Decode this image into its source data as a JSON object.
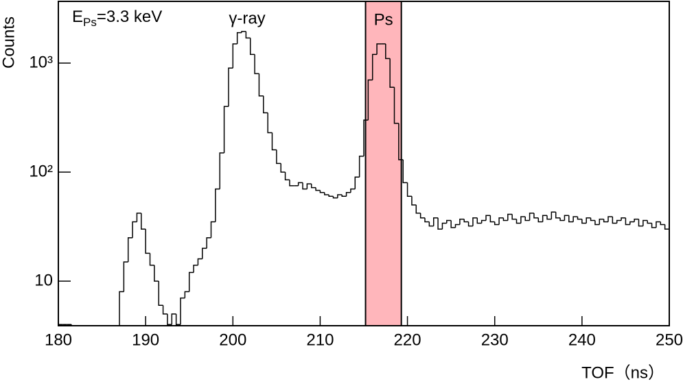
{
  "chart_data": {
    "type": "histogram",
    "x_label": "TOF（ns）",
    "y_label": "Counts",
    "log_y": true,
    "color": "#000000",
    "xlim": [
      180,
      250
    ],
    "ylim": [
      3.9,
      3680
    ],
    "xticks": [
      180,
      190,
      200,
      210,
      220,
      230,
      240,
      250
    ],
    "yticks": [
      10,
      {
        "value": 100,
        "label": "10²"
      },
      {
        "value": 1000,
        "label": "10³"
      }
    ],
    "annotations": [
      {
        "main": "E",
        "sub": "Ps",
        "rest": "=3.3 keV"
      },
      {
        "text": "γ-ray"
      }
    ],
    "highlight": {
      "range": [
        215.2,
        219.3
      ],
      "label": "Ps",
      "color": "#ffb6bb"
    },
    "bins": [
      180,
      180.5,
      181,
      181.5,
      182,
      182.5,
      183,
      183.5,
      184,
      184.5,
      185,
      185.5,
      186,
      186.5,
      187,
      187.5,
      188,
      188.5,
      189,
      189.5,
      190,
      190.5,
      191,
      191.5,
      192,
      192.5,
      193,
      193.5,
      194,
      194.5,
      195,
      195.5,
      196,
      196.5,
      197,
      197.5,
      198,
      198.5,
      199,
      199.5,
      200,
      200.5,
      201,
      201.5,
      202,
      202.5,
      203,
      203.5,
      204,
      204.5,
      205,
      205.5,
      206,
      206.5,
      207,
      207.5,
      208,
      208.5,
      209,
      209.5,
      210,
      210.5,
      211,
      211.5,
      212,
      212.5,
      213,
      213.5,
      214,
      214.5,
      215,
      215.5,
      216,
      216.5,
      217,
      217.5,
      218,
      218.5,
      219,
      219.5,
      220,
      220.5,
      221,
      221.5,
      222,
      222.5,
      223,
      223.5,
      224,
      224.5,
      225,
      225.5,
      226,
      226.5,
      227,
      227.5,
      228,
      228.5,
      229,
      229.5,
      230,
      230.5,
      231,
      231.5,
      232,
      232.5,
      233,
      233.5,
      234,
      234.5,
      235,
      235.5,
      236,
      236.5,
      237,
      237.5,
      238,
      238.5,
      239,
      239.5,
      240,
      240.5,
      241,
      241.5,
      242,
      242.5,
      243,
      243.5,
      244,
      244.5,
      245,
      245.5,
      246,
      246.5,
      247,
      247.5,
      248,
      248.5,
      249,
      249.5,
      250
    ],
    "values": [
      4,
      4,
      4,
      3,
      3,
      3,
      3,
      3,
      3,
      3,
      3,
      3,
      3,
      3,
      8,
      15,
      25,
      35,
      42,
      30,
      18,
      14,
      10,
      6,
      5,
      4,
      5,
      4,
      7,
      8,
      12,
      14,
      16,
      20,
      25,
      35,
      70,
      150,
      400,
      900,
      1500,
      1900,
      1950,
      1700,
      1200,
      800,
      500,
      350,
      230,
      160,
      120,
      100,
      85,
      75,
      75,
      80,
      70,
      78,
      72,
      68,
      65,
      62,
      60,
      58,
      62,
      60,
      65,
      70,
      90,
      140,
      300,
      700,
      1200,
      1500,
      1500,
      1100,
      600,
      280,
      130,
      80,
      60,
      50,
      42,
      38,
      35,
      32,
      38,
      30,
      34,
      36,
      31,
      33,
      37,
      35,
      32,
      38,
      34,
      36,
      40,
      35,
      33,
      38,
      36,
      41,
      37,
      34,
      39,
      36,
      42,
      38,
      35,
      40,
      37,
      43,
      38,
      36,
      40,
      35,
      39,
      37,
      34,
      38,
      36,
      33,
      37,
      35,
      39,
      34,
      36,
      38,
      33,
      35,
      37,
      32,
      36,
      34,
      31,
      35,
      33,
      30
    ]
  }
}
